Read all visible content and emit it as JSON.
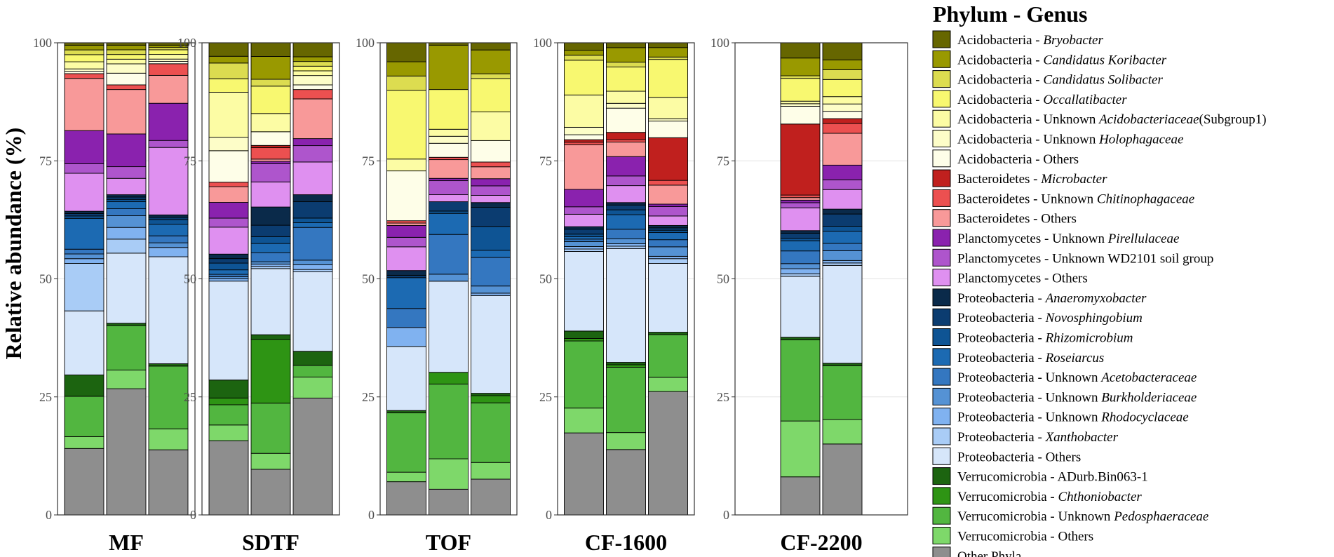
{
  "chart_data": {
    "type": "stacked-bar",
    "ylabel": "Relative abundance (%)",
    "ylim": [
      0,
      100
    ],
    "yticks": [
      0,
      25,
      50,
      75,
      100
    ],
    "legend_title": "Phylum - Genus",
    "legend_position": "right",
    "series": [
      {
        "phylum": "Acidobacteria",
        "sep": " - ",
        "genus": "Bryobacter",
        "italic": true,
        "suffix": "",
        "color": "#666600"
      },
      {
        "phylum": "Acidobacteria",
        "sep": " - ",
        "genus": "Candidatus Koribacter",
        "italic": true,
        "suffix": "",
        "color": "#999900"
      },
      {
        "phylum": "Acidobacteria",
        "sep": " - ",
        "genus": "Candidatus Solibacter",
        "italic": true,
        "suffix": "",
        "color": "#DCDC50"
      },
      {
        "phylum": "Acidobacteria",
        "sep": " - ",
        "genus": "Occallatibacter",
        "italic": true,
        "suffix": "",
        "color": "#F8F870"
      },
      {
        "phylum": "Acidobacteria",
        "sep": " - Unknown ",
        "genus": "Acidobacteriaceae",
        "italic": true,
        "suffix": "(Subgroup1)",
        "color": "#FCFCA4"
      },
      {
        "phylum": "Acidobacteria",
        "sep": " - Unknown ",
        "genus": "Holophagaceae",
        "italic": true,
        "suffix": "",
        "color": "#FDFDC8"
      },
      {
        "phylum": "Acidobacteria",
        "sep": " - ",
        "genus": "Others",
        "italic": false,
        "suffix": "",
        "color": "#FEFEE8"
      },
      {
        "phylum": "Bacteroidetes",
        "sep": " - ",
        "genus": "Microbacter",
        "italic": true,
        "suffix": "",
        "color": "#C0201E"
      },
      {
        "phylum": "Bacteroidetes",
        "sep": " - Unknown ",
        "genus": "Chitinophagaceae",
        "italic": true,
        "suffix": "",
        "color": "#EC5050"
      },
      {
        "phylum": "Bacteroidetes",
        "sep": " - ",
        "genus": "Others",
        "italic": false,
        "suffix": "",
        "color": "#F89999"
      },
      {
        "phylum": "Planctomycetes",
        "sep": " - Unknown ",
        "genus": "Pirellulaceae",
        "italic": true,
        "suffix": "",
        "color": "#8A22AE"
      },
      {
        "phylum": "Planctomycetes",
        "sep": " - Unknown ",
        "genus": "WD2101 soil group",
        "italic": false,
        "suffix": "",
        "color": "#AE55CC"
      },
      {
        "phylum": "Planctomycetes",
        "sep": " - ",
        "genus": "Others",
        "italic": false,
        "suffix": "",
        "color": "#DF90F0"
      },
      {
        "phylum": "Proteobacteria",
        "sep": " - ",
        "genus": "Anaeromyxobacter",
        "italic": true,
        "suffix": "",
        "color": "#0A2A4A"
      },
      {
        "phylum": "Proteobacteria",
        "sep": " - ",
        "genus": "Novosphingobium",
        "italic": true,
        "suffix": "",
        "color": "#0B3C70"
      },
      {
        "phylum": "Proteobacteria",
        "sep": " - ",
        "genus": "Rhizomicrobium",
        "italic": true,
        "suffix": "",
        "color": "#0E5494"
      },
      {
        "phylum": "Proteobacteria",
        "sep": " - ",
        "genus": "Roseiarcus",
        "italic": true,
        "suffix": "",
        "color": "#1C6AB2"
      },
      {
        "phylum": "Proteobacteria",
        "sep": " - Unknown ",
        "genus": "Acetobacteraceae",
        "italic": true,
        "suffix": "",
        "color": "#3477C0"
      },
      {
        "phylum": "Proteobacteria",
        "sep": " - Unknown ",
        "genus": "Burkholderiaceae",
        "italic": true,
        "suffix": "",
        "color": "#5592D4"
      },
      {
        "phylum": "Proteobacteria",
        "sep": " - Unknown ",
        "genus": "Rhodocyclaceae",
        "italic": true,
        "suffix": "",
        "color": "#80B2F0"
      },
      {
        "phylum": "Proteobacteria",
        "sep": " - ",
        "genus": "Xanthobacter",
        "italic": true,
        "suffix": "",
        "color": "#A9CCF6"
      },
      {
        "phylum": "Proteobacteria",
        "sep": " - ",
        "genus": "Others",
        "italic": false,
        "suffix": "",
        "color": "#D6E6FA"
      },
      {
        "phylum": "Verrucomicrobia",
        "sep": " - ",
        "genus": "ADurb.Bin063-1",
        "italic": false,
        "suffix": "",
        "color": "#1C6410"
      },
      {
        "phylum": "Verrucomicrobia",
        "sep": " - ",
        "genus": "Chthoniobacter",
        "italic": true,
        "suffix": "",
        "color": "#2E9414"
      },
      {
        "phylum": "Verrucomicrobia",
        "sep": " - Unknown ",
        "genus": "Pedosphaeraceae",
        "italic": true,
        "suffix": "",
        "color": "#52B640"
      },
      {
        "phylum": "Verrucomicrobia",
        "sep": " - ",
        "genus": "Others",
        "italic": false,
        "suffix": "",
        "color": "#7ED86A"
      },
      {
        "phylum": "Other Phyla",
        "sep": "",
        "genus": "",
        "italic": false,
        "suffix": "",
        "color": "#8E8E8E"
      }
    ],
    "panels": [
      {
        "label": "MF",
        "bars": [
          [
            0.5,
            1,
            1,
            1.5,
            1.5,
            0.5,
            0.5,
            0,
            1,
            11,
            7,
            2,
            8,
            0.5,
            0.5,
            0.5,
            6.5,
            1,
            1,
            1,
            10,
            13.5,
            4.5,
            0,
            8.5,
            2.5,
            14
          ],
          [
            0.5,
            1,
            1,
            1,
            1,
            2,
            2.5,
            0,
            1,
            9.5,
            7,
            2.5,
            3.5,
            0.5,
            0.5,
            0.5,
            1.5,
            1.5,
            2.5,
            2.5,
            3,
            15,
            0.5,
            0,
            9.5,
            4,
            27
          ],
          [
            0.5,
            0.5,
            0.5,
            1,
            1,
            0.5,
            0.5,
            0,
            2.5,
            6,
            8,
            1.5,
            14.5,
            0.5,
            0.5,
            1,
            2.5,
            1.5,
            1,
            2,
            0,
            23,
            0.5,
            0,
            13.5,
            4.5,
            14
          ]
        ]
      },
      {
        "label": "SDTF",
        "bars": [
          [
            3,
            1.5,
            3.5,
            3,
            10,
            3,
            7,
            0,
            1,
            3.5,
            3.5,
            2,
            6,
            1,
            1,
            1.5,
            1,
            0.5,
            0.5,
            0.5,
            0,
            22,
            4,
            1.5,
            4.5,
            3.5,
            16.5
          ],
          [
            3,
            5,
            1.5,
            6,
            4,
            0,
            3,
            0.5,
            2.5,
            0.5,
            0.5,
            4,
            5.5,
            4,
            2.5,
            1.5,
            2,
            2,
            0.5,
            0.5,
            0.5,
            14.5,
            1,
            14,
            11,
            3.5,
            10
          ],
          [
            3,
            1,
            1,
            1,
            1,
            2,
            1,
            0,
            2,
            8.5,
            1.5,
            3.5,
            7,
            1.5,
            3.5,
            1,
            1,
            7,
            1,
            1,
            0.5,
            17,
            3,
            0,
            2.5,
            4.5,
            25
          ]
        ]
      },
      {
        "label": "TOF",
        "bars": [
          [
            4,
            3,
            3,
            14.5,
            2.5,
            0,
            10.5,
            0,
            0.5,
            0.5,
            2.5,
            2,
            5,
            1,
            0.5,
            0,
            6.5,
            4,
            0,
            4,
            0,
            13.5,
            0.5,
            0,
            12.5,
            2,
            7
          ],
          [
            0.5,
            9.5,
            0,
            8.5,
            1.5,
            1.5,
            3,
            0,
            0.5,
            4,
            0.5,
            3,
            1.5,
            0,
            2,
            0.5,
            4.5,
            8.5,
            1.5,
            0,
            0,
            19.5,
            0,
            2.5,
            16,
            6.5,
            5.5
          ],
          [
            1.5,
            5,
            1,
            7,
            6,
            0,
            4.5,
            0,
            1,
            2.5,
            1.5,
            2,
            1.5,
            1,
            4,
            5,
            1.5,
            6,
            1.5,
            0.5,
            0,
            20.5,
            0.5,
            1.5,
            12.5,
            3.5,
            7.5
          ]
        ]
      },
      {
        "label": "CF-1600",
        "bars": [
          [
            1.5,
            1,
            1,
            7,
            6.5,
            1.5,
            1,
            0.5,
            0.5,
            9,
            3.5,
            1.5,
            2.5,
            0.5,
            1,
            0.5,
            0.5,
            0.5,
            1,
            0.5,
            0.5,
            16,
            1.5,
            0.5,
            13.5,
            5,
            16.5
          ],
          [
            1,
            3,
            1,
            5,
            2.5,
            1,
            5,
            1.5,
            0.5,
            3,
            4,
            2,
            3.5,
            0.5,
            1,
            1,
            3,
            2,
            1,
            0.5,
            0.5,
            23.5,
            0.5,
            0.5,
            13.5,
            3.5,
            13.5
          ],
          [
            1,
            2,
            0.5,
            8,
            4.5,
            0.5,
            3.5,
            9,
            1,
            4,
            0.5,
            2,
            2,
            0.5,
            0.5,
            0.5,
            1.5,
            1.5,
            2,
            0.5,
            1,
            14.5,
            0.5,
            0,
            9,
            3,
            26
          ]
        ]
      },
      {
        "label": "CF-2200",
        "bars": [
          [
            3,
            3.5,
            0.5,
            4.5,
            0.5,
            0.5,
            3.5,
            14,
            0.5,
            0.5,
            0.5,
            1,
            4.5,
            0.5,
            1,
            0.5,
            2,
            2.5,
            1,
            1,
            0.5,
            12,
            0.5,
            0,
            16,
            11,
            7.5
          ],
          [
            3.5,
            2,
            2,
            3.5,
            1.5,
            1.5,
            1.5,
            1,
            2,
            6.5,
            3,
            2,
            4,
            1,
            2.5,
            1,
            2.5,
            1.5,
            2,
            0.5,
            0.5,
            20,
            0.5,
            0,
            11,
            5,
            14.5
          ]
        ]
      }
    ]
  }
}
